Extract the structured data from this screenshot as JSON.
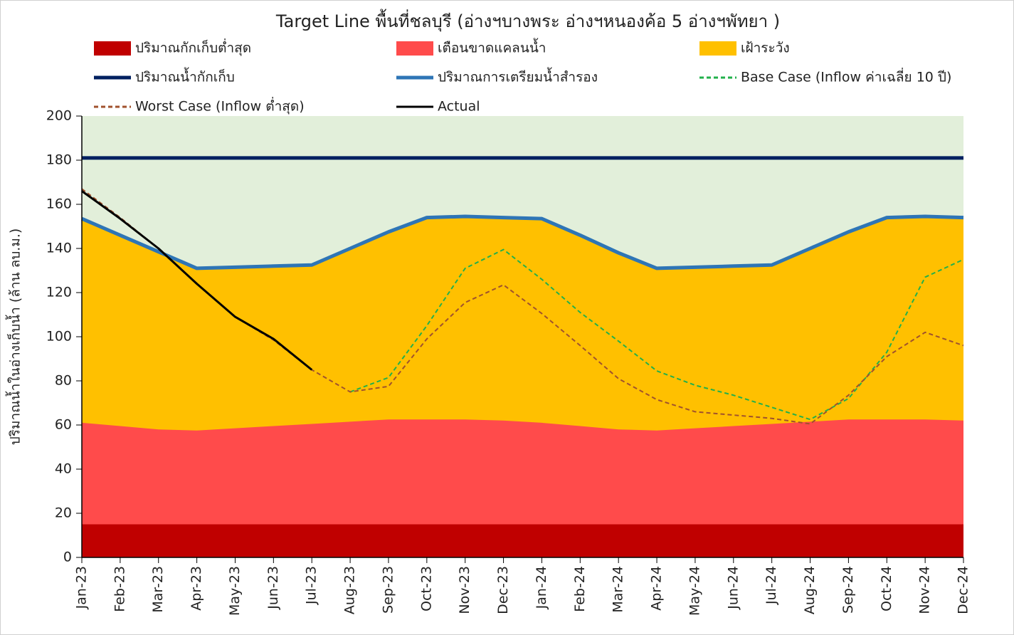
{
  "chart_data": {
    "type": "line",
    "title": "Target Line พื้นที่ชลบุรี (อ่างฯบางพระ อ่างฯหนองค้อ 5 อ่างฯพัทยา )",
    "y_label": "ปริมาณน้ำในอ่างเก็บน้ำ (ล้าน ลบ.ม.)",
    "categories": [
      "Jan-23",
      "Feb-23",
      "Mar-23",
      "Apr-23",
      "May-23",
      "Jun-23",
      "Jul-23",
      "Aug-23",
      "Sep-23",
      "Oct-23",
      "Nov-23",
      "Dec-23",
      "Jan-24",
      "Feb-24",
      "Mar-24",
      "Apr-24",
      "May-24",
      "Jun-24",
      "Jul-24",
      "Aug-24",
      "Sep-24",
      "Oct-24",
      "Nov-24",
      "Dec-24"
    ],
    "ylim": [
      0,
      200
    ],
    "yticks": [
      0,
      20,
      40,
      60,
      80,
      100,
      120,
      140,
      160,
      180,
      200
    ],
    "plot_background": "#e2efda",
    "series": [
      {
        "name": "ปริมาณกักเก็บต่ำสุด",
        "kind": "area",
        "color": "#c00000",
        "values": [
          15,
          15,
          15,
          15,
          15,
          15,
          15,
          15,
          15,
          15,
          15,
          15,
          15,
          15,
          15,
          15,
          15,
          15,
          15,
          15,
          15,
          15,
          15,
          15
        ]
      },
      {
        "name": "เตือนขาดแคลนน้ำ",
        "kind": "area",
        "color": "#ff4b4b",
        "values": [
          61,
          59.5,
          58,
          57.5,
          58.5,
          59.5,
          60.5,
          61.5,
          62.5,
          62.5,
          62.5,
          62,
          61,
          59.5,
          58,
          57.5,
          58.5,
          59.5,
          60.5,
          61.5,
          62.5,
          62.5,
          62.5,
          62
        ]
      },
      {
        "name": "เฝ้าระวัง",
        "kind": "area",
        "color": "#ffc000",
        "values": [
          153.5,
          146,
          138.5,
          131,
          131.5,
          132,
          132.5,
          140,
          147.5,
          154,
          154.5,
          154,
          153.5,
          146,
          138,
          131,
          131.5,
          132,
          132.5,
          140,
          147.5,
          154,
          154.5,
          154
        ]
      },
      {
        "name": "ปริมาณน้ำกักเก็บ",
        "kind": "line",
        "color": "#002060",
        "width": 5,
        "values": [
          181,
          181,
          181,
          181,
          181,
          181,
          181,
          181,
          181,
          181,
          181,
          181,
          181,
          181,
          181,
          181,
          181,
          181,
          181,
          181,
          181,
          181,
          181,
          181
        ]
      },
      {
        "name": "ปริมาณการเตรียมน้ำสำรอง",
        "kind": "line",
        "color": "#2e75b6",
        "width": 5,
        "values": [
          153.5,
          146,
          138.5,
          131,
          131.5,
          132,
          132.5,
          140,
          147.5,
          154,
          154.5,
          154,
          153.5,
          146,
          138,
          131,
          131.5,
          132,
          132.5,
          140,
          147.5,
          154,
          154.5,
          154
        ]
      },
      {
        "name": "Base Case (Inflow ค่าเฉลี่ย 10 ปี)",
        "kind": "line",
        "dash": true,
        "color": "#22b04b",
        "width": 2,
        "values": [
          null,
          null,
          null,
          null,
          null,
          null,
          null,
          75,
          81.5,
          105,
          131,
          139.5,
          126,
          111,
          98,
          84.5,
          78,
          73.5,
          68,
          62.5,
          72,
          93,
          127,
          135
        ]
      },
      {
        "name": "Worst Case (Inflow ต่ำสุด)",
        "kind": "line",
        "dash": true,
        "color": "#a0522d",
        "width": 2,
        "values": [
          167,
          154,
          140,
          124,
          109,
          98.5,
          85,
          75,
          77.5,
          99,
          115.5,
          123.5,
          110.5,
          96,
          81,
          71.5,
          66,
          64.5,
          63,
          60.5,
          73.5,
          91,
          102,
          96
        ]
      },
      {
        "name": "Actual",
        "kind": "line",
        "color": "#000000",
        "width": 3,
        "values": [
          166,
          153.5,
          140,
          124,
          109,
          99,
          85,
          null,
          null,
          null,
          null,
          null,
          null,
          null,
          null,
          null,
          null,
          null,
          null,
          null,
          null,
          null,
          null,
          null
        ]
      }
    ]
  }
}
